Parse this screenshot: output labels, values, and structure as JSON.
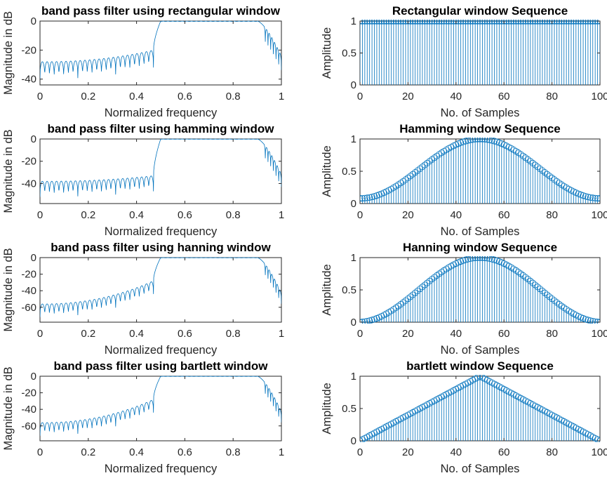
{
  "colors": {
    "series": "#0072BD",
    "axis": "#262626",
    "background": "#ffffff"
  },
  "chart_data": [
    {
      "type": "line",
      "title": "band pass filter using rectangular window",
      "xlabel": "Normalized frequency",
      "ylabel": "Magnitude in dB",
      "xlim": [
        0,
        1
      ],
      "ylim": [
        -44,
        0
      ],
      "xticks": [
        "0",
        "0.2",
        "0.4",
        "0.6",
        "0.8",
        "1"
      ],
      "yticks": [
        "0",
        "-20",
        "-40"
      ],
      "passband": [
        0.5,
        0.9
      ],
      "stopband_start_db": -28,
      "stopband_edge_db": -20,
      "ripple_db": 12,
      "ripple_count": 24,
      "grid": false
    },
    {
      "type": "stem",
      "title": "Rectangular window Sequence",
      "xlabel": "No. of Samples",
      "ylabel": "Amplitude",
      "window": "rectangular",
      "n": 101,
      "xlim": [
        0,
        100
      ],
      "ylim": [
        0,
        1
      ],
      "xticks": [
        "0",
        "20",
        "40",
        "60",
        "80",
        "100"
      ],
      "yticks": [
        "0",
        "0.5",
        "1"
      ],
      "grid": false
    },
    {
      "type": "line",
      "title": "band pass filter using hamming window",
      "xlabel": "Normalized frequency",
      "ylabel": "Magnitude in dB",
      "xlim": [
        0,
        1
      ],
      "ylim": [
        -58,
        0
      ],
      "xticks": [
        "0",
        "0.2",
        "0.4",
        "0.6",
        "0.8",
        "1"
      ],
      "yticks": [
        "0",
        "-20",
        "-40"
      ],
      "passband": [
        0.5,
        0.9
      ],
      "stopband_start_db": -38,
      "stopband_edge_db": -33,
      "ripple_db": 14,
      "ripple_count": 24,
      "grid": false
    },
    {
      "type": "stem",
      "title": "Hamming window Sequence",
      "xlabel": "No. of Samples",
      "ylabel": "Amplitude",
      "window": "hamming",
      "n": 101,
      "xlim": [
        0,
        100
      ],
      "ylim": [
        0,
        1
      ],
      "xticks": [
        "0",
        "20",
        "40",
        "60",
        "80",
        "100"
      ],
      "yticks": [
        "0",
        "0.5",
        "1"
      ],
      "grid": false
    },
    {
      "type": "line",
      "title": "band pass filter using hanning window",
      "xlabel": "Normalized frequency",
      "ylabel": "Magnitude in dB",
      "xlim": [
        0,
        1
      ],
      "ylim": [
        -78,
        0
      ],
      "xticks": [
        "0",
        "0.2",
        "0.4",
        "0.6",
        "0.8",
        "1"
      ],
      "yticks": [
        "0",
        "-20",
        "-40",
        "-60"
      ],
      "passband": [
        0.5,
        0.9
      ],
      "stopband_start_db": -56,
      "stopband_edge_db": -28,
      "ripple_db": 16,
      "ripple_count": 24,
      "grid": false
    },
    {
      "type": "stem",
      "title": "Hanning window Sequence",
      "xlabel": "No. of Samples",
      "ylabel": "Amplitude",
      "window": "hanning",
      "n": 101,
      "xlim": [
        0,
        100
      ],
      "ylim": [
        0,
        1
      ],
      "xticks": [
        "0",
        "20",
        "40",
        "60",
        "80",
        "100"
      ],
      "yticks": [
        "0",
        "0.5",
        "1"
      ],
      "grid": false
    },
    {
      "type": "line",
      "title": "band pass filter using bartlett window",
      "xlabel": "Normalized frequency",
      "ylabel": "Magnitude in dB",
      "xlim": [
        0,
        1
      ],
      "ylim": [
        -78,
        0
      ],
      "xticks": [
        "0",
        "0.2",
        "0.4",
        "0.6",
        "0.8",
        "1"
      ],
      "yticks": [
        "0",
        "-20",
        "-40",
        "-60"
      ],
      "passband": [
        0.5,
        0.9
      ],
      "stopband_start_db": -56,
      "stopband_edge_db": -28,
      "ripple_db": 16,
      "ripple_count": 24,
      "grid": false
    },
    {
      "type": "stem",
      "title": "bartlett window Sequence",
      "xlabel": "No. of Samples",
      "ylabel": "Amplitude",
      "window": "bartlett",
      "n": 101,
      "xlim": [
        0,
        100
      ],
      "ylim": [
        0,
        1
      ],
      "xticks": [
        "0",
        "20",
        "40",
        "60",
        "80",
        "100"
      ],
      "yticks": [
        "0",
        "0.5",
        "1"
      ],
      "grid": false
    }
  ]
}
